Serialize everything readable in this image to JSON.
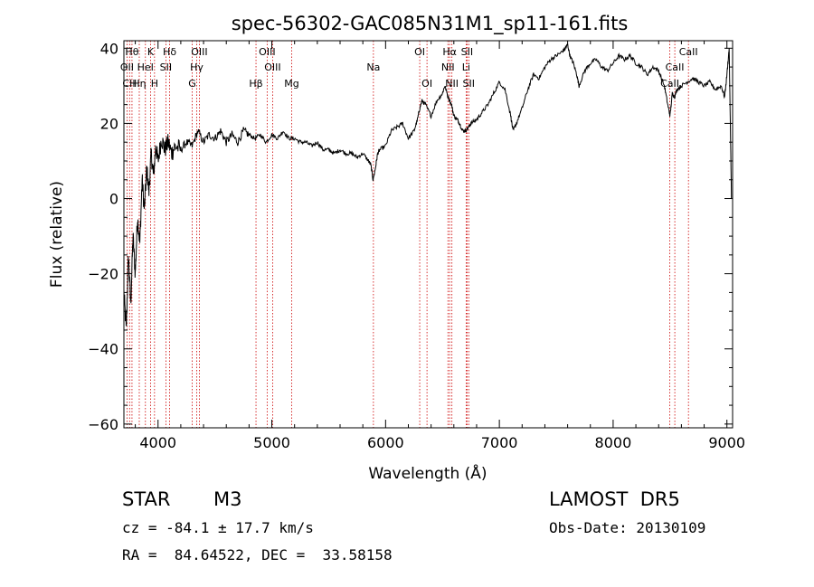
{
  "chart_data": {
    "type": "line",
    "title": "spec-56302-GAC085N31M1_sp11-161.fits",
    "xlabel": "Wavelength (Å)",
    "ylabel": "Flux (relative)",
    "xlim": [
      3700,
      9050
    ],
    "ylim": [
      -61,
      42
    ],
    "xticks": [
      4000,
      5000,
      6000,
      7000,
      8000,
      9000
    ],
    "yticks": [
      -60,
      -40,
      -20,
      0,
      20,
      40
    ],
    "xtick_labels": [
      "4000",
      "5000",
      "6000",
      "7000",
      "8000",
      "9000"
    ],
    "ytick_labels": [
      "−60",
      "−40",
      "−20",
      "0",
      "20",
      "40"
    ],
    "grid": false,
    "series": [
      {
        "color": "#000000",
        "x": [
          3700,
          3720,
          3740,
          3760,
          3780,
          3800,
          3820,
          3840,
          3860,
          3880,
          3900,
          3920,
          3940,
          3960,
          3980,
          4000,
          4030,
          4060,
          4090,
          4120,
          4150,
          4200,
          4250,
          4300,
          4350,
          4400,
          4450,
          4500,
          4550,
          4600,
          4650,
          4700,
          4750,
          4800,
          4850,
          4900,
          4950,
          5000,
          5050,
          5100,
          5150,
          5200,
          5250,
          5300,
          5350,
          5400,
          5450,
          5500,
          5550,
          5600,
          5650,
          5700,
          5750,
          5800,
          5850,
          5870,
          5890,
          5910,
          5930,
          5950,
          6000,
          6050,
          6100,
          6150,
          6200,
          6250,
          6280,
          6300,
          6320,
          6350,
          6400,
          6450,
          6500,
          6520,
          6550,
          6580,
          6600,
          6630,
          6650,
          6680,
          6700,
          6730,
          6750,
          6800,
          6850,
          6900,
          6950,
          7000,
          7050,
          7100,
          7120,
          7150,
          7200,
          7250,
          7300,
          7350,
          7400,
          7450,
          7500,
          7550,
          7580,
          7600,
          7620,
          7650,
          7680,
          7700,
          7750,
          7800,
          7850,
          7900,
          7950,
          8000,
          8050,
          8100,
          8150,
          8200,
          8250,
          8300,
          8350,
          8400,
          8450,
          8480,
          8500,
          8520,
          8540,
          8560,
          8600,
          8650,
          8700,
          8750,
          8800,
          8850,
          8900,
          8950,
          8980,
          9000,
          9020,
          9040
        ],
        "y": [
          -25,
          -35,
          -15,
          -28,
          -10,
          -20,
          -5,
          -12,
          5,
          -3,
          8,
          2,
          12,
          6,
          14,
          10,
          16,
          13,
          15,
          12,
          14,
          13,
          15,
          14,
          18,
          15,
          17,
          16,
          18,
          15,
          17,
          15,
          18,
          17,
          16,
          17,
          15,
          17,
          16,
          18,
          16,
          16,
          15,
          15,
          14,
          15,
          13,
          13,
          12,
          13,
          12,
          12,
          11,
          12,
          10,
          9,
          5,
          8,
          12,
          13,
          14,
          18,
          19,
          20,
          16,
          18,
          21,
          24,
          26,
          25,
          22,
          26,
          28,
          30,
          27,
          25,
          22,
          21,
          20,
          18,
          18,
          19,
          20,
          21,
          23,
          25,
          28,
          31,
          29,
          22,
          18,
          20,
          24,
          29,
          33,
          32,
          35,
          37,
          38,
          39,
          40,
          41,
          38,
          36,
          33,
          30,
          34,
          36,
          37,
          35,
          34,
          36,
          38,
          37,
          38,
          36,
          35,
          33,
          35,
          34,
          30,
          25,
          22,
          28,
          27,
          29,
          30,
          31,
          32,
          31,
          30,
          31,
          29,
          30,
          27,
          33,
          40,
          0
        ]
      }
    ],
    "annotations": [
      "Hθ",
      "K",
      "Hδ",
      "OIII",
      "OII",
      "HeI",
      "SII",
      "Hγ",
      "CH",
      "Hη",
      "H",
      "G",
      "OIII",
      "OIII",
      "Hβ",
      "Mg",
      "Na",
      "OI",
      "OI",
      "Hα",
      "NII",
      "NII",
      "SII",
      "Li",
      "SII",
      "CaII",
      "CaII",
      "CaII"
    ],
    "lines": [
      {
        "wl": 3727,
        "label": "OII",
        "row": 2
      },
      {
        "wl": 3750,
        "label": "CH",
        "row": 3
      },
      {
        "wl": 3771,
        "label": "Hθ",
        "row": 1
      },
      {
        "wl": 3835,
        "label": "Hη",
        "row": 3
      },
      {
        "wl": 3889,
        "label": "HeI",
        "row": 2
      },
      {
        "wl": 3934,
        "label": "K",
        "row": 1
      },
      {
        "wl": 3969,
        "label": "H",
        "row": 3
      },
      {
        "wl": 4069,
        "label": "SII",
        "row": 2
      },
      {
        "wl": 4102,
        "label": "Hδ",
        "row": 1
      },
      {
        "wl": 4300,
        "label": "G",
        "row": 3
      },
      {
        "wl": 4340,
        "label": "Hγ",
        "row": 2
      },
      {
        "wl": 4363,
        "label": "OIII",
        "row": 1
      },
      {
        "wl": 4861,
        "label": "Hβ",
        "row": 3
      },
      {
        "wl": 4959,
        "label": "OIII",
        "row": 1
      },
      {
        "wl": 5007,
        "label": "OIII",
        "row": 2
      },
      {
        "wl": 5175,
        "label": "Mg",
        "row": 3
      },
      {
        "wl": 5893,
        "label": "Na",
        "row": 2
      },
      {
        "wl": 6300,
        "label": "OI",
        "row": 1
      },
      {
        "wl": 6364,
        "label": "OI",
        "row": 3
      },
      {
        "wl": 6548,
        "label": "NII",
        "row": 2
      },
      {
        "wl": 6563,
        "label": "Hα",
        "row": 1
      },
      {
        "wl": 6583,
        "label": "NII",
        "row": 3
      },
      {
        "wl": 6708,
        "label": "Li",
        "row": 2
      },
      {
        "wl": 6716,
        "label": "SII",
        "row": 1
      },
      {
        "wl": 6731,
        "label": "SII",
        "row": 3
      },
      {
        "wl": 8498,
        "label": "CaII",
        "row": 3
      },
      {
        "wl": 8542,
        "label": "CaII",
        "row": 2
      },
      {
        "wl": 8662,
        "label": "CaII",
        "row": 1
      }
    ]
  },
  "info": {
    "object_class": "STAR",
    "subclass": "M3",
    "survey": "LAMOST  DR5",
    "cz": "cz = -84.1 ± 17.7 km/s",
    "obs_date": "Obs-Date: 20130109",
    "coords": "RA =  84.64522, DEC =  33.58158"
  },
  "colors": {
    "spectrum": "#000000",
    "line_markers": "#cc0000",
    "axes": "#000000",
    "background": "#ffffff"
  }
}
